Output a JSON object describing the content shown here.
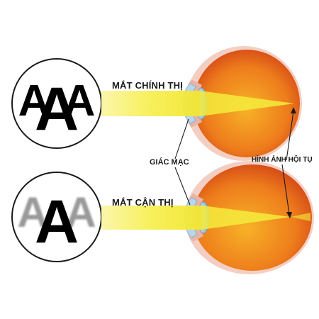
{
  "labels": {
    "normal_eye": "MẮT CHÍNH THỊ",
    "myopic_eye": "MẮT CẬN THỊ",
    "cornea": "GIÁC MẠC",
    "retinal_image": "HÌNH ẢNH HỘI TỤ"
  },
  "symbols": {
    "letter": "A"
  },
  "colors": {
    "light_beam": "#f6f04a",
    "eyeball_inner": "#f4a21a",
    "eyeball_outer": "#c52a14",
    "sclera_rim": "#f3cfc3",
    "lens": "#9ec3dc",
    "letter_sharp": "#000000",
    "letter_blurred": "#9a9a9a"
  }
}
